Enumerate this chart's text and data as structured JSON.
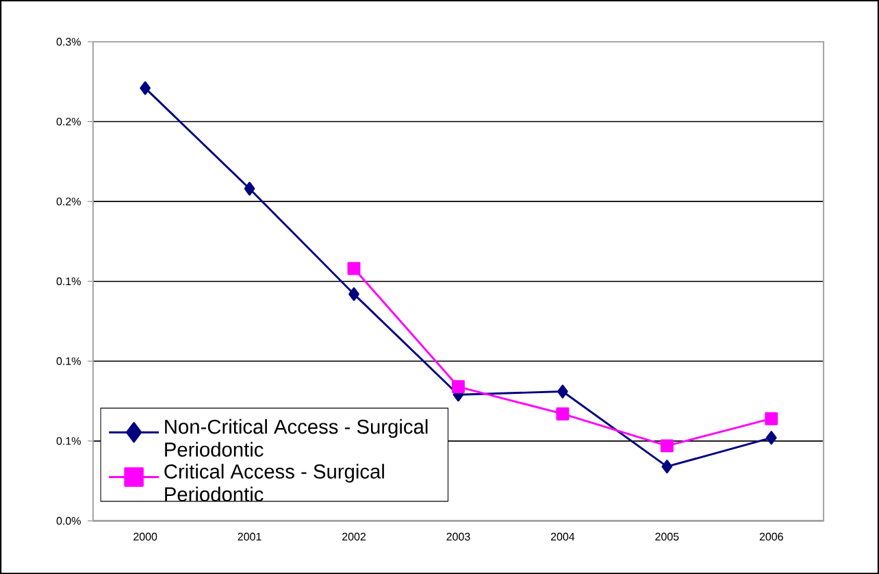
{
  "chart_data": {
    "type": "line",
    "categories": [
      "2000",
      "2001",
      "2002",
      "2003",
      "2004",
      "2005",
      "2006"
    ],
    "series": [
      {
        "name": "Non-Critical Access - Surgical Periodontic",
        "color": "#000080",
        "marker": "diamond",
        "values": [
          0.271,
          0.208,
          0.142,
          0.079,
          0.081,
          0.034,
          0.052
        ]
      },
      {
        "name": "Critical Access - Surgical Periodontic",
        "color": "#ff00ff",
        "marker": "square",
        "values": [
          null,
          null,
          0.158,
          0.084,
          0.067,
          0.047,
          0.064
        ]
      }
    ],
    "ylim": [
      0,
      0.3
    ],
    "yticks": [
      {
        "value": 0,
        "label": "0.0%"
      },
      {
        "value": 0.05,
        "label": "0.1%"
      },
      {
        "value": 0.1,
        "label": "0.1%"
      },
      {
        "value": 0.15,
        "label": "0.1%"
      },
      {
        "value": 0.2,
        "label": "0.2%"
      },
      {
        "value": 0.25,
        "label": "0.2%"
      },
      {
        "value": 0.3,
        "label": "0.3%"
      }
    ],
    "grid": "y",
    "legend": "bottom left",
    "line_style": "solid"
  }
}
